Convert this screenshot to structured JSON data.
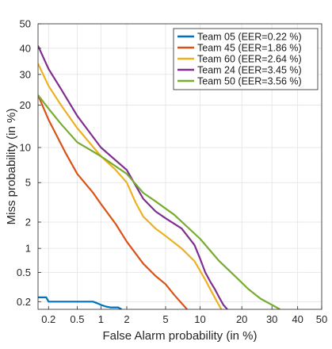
{
  "chart_data": {
    "type": "line",
    "title": "",
    "xlabel": "False Alarm probability (in %)",
    "ylabel": "Miss probability (in %)",
    "xscale": "probit",
    "yscale": "probit",
    "xlim": [
      0.14,
      50
    ],
    "ylim": [
      0.155,
      50
    ],
    "grid": true,
    "legend_position": "top-right",
    "x_ticks": [
      0.2,
      0.5,
      1,
      2,
      5,
      10,
      20,
      30,
      40,
      50
    ],
    "x_tick_labels": [
      "0.2",
      "0.5",
      "1",
      "2",
      "5",
      "10",
      "20",
      "30",
      "40",
      "50"
    ],
    "y_ticks": [
      0.2,
      0.5,
      1,
      2,
      5,
      10,
      20,
      30,
      40,
      50
    ],
    "y_tick_labels": [
      "0.2",
      "0.5",
      "1",
      "2",
      "5",
      "10",
      "20",
      "30",
      "40",
      "50"
    ],
    "series": [
      {
        "name": "Team 05 (EER=0.22 %)",
        "color": "#0072BD",
        "points": [
          [
            0.14,
            0.23
          ],
          [
            0.185,
            0.23
          ],
          [
            0.2,
            0.2
          ],
          [
            0.5,
            0.2
          ],
          [
            0.8,
            0.2
          ],
          [
            0.9,
            0.19
          ],
          [
            1.0,
            0.18
          ],
          [
            1.15,
            0.17
          ],
          [
            1.3,
            0.165
          ],
          [
            1.6,
            0.165
          ],
          [
            1.75,
            0.155
          ]
        ]
      },
      {
        "name": "Team 45 (EER=1.86 %)",
        "color": "#D95319",
        "points": [
          [
            0.14,
            23
          ],
          [
            0.2,
            16
          ],
          [
            0.35,
            9
          ],
          [
            0.5,
            6
          ],
          [
            0.8,
            4
          ],
          [
            1.0,
            3.1
          ],
          [
            1.5,
            1.9
          ],
          [
            2.0,
            1.2
          ],
          [
            3.0,
            0.65
          ],
          [
            4.0,
            0.45
          ],
          [
            5.0,
            0.35
          ],
          [
            6.0,
            0.25
          ],
          [
            7.0,
            0.19
          ],
          [
            7.8,
            0.155
          ]
        ]
      },
      {
        "name": "Team 60 (EER=2.64 %)",
        "color": "#EDB120",
        "points": [
          [
            0.14,
            34
          ],
          [
            0.2,
            26
          ],
          [
            0.3,
            20
          ],
          [
            0.5,
            14
          ],
          [
            1.0,
            8.5
          ],
          [
            1.5,
            6.5
          ],
          [
            2.0,
            5.0
          ],
          [
            2.5,
            3.2
          ],
          [
            3.0,
            2.3
          ],
          [
            4.0,
            1.7
          ],
          [
            5.0,
            1.4
          ],
          [
            7.0,
            1.0
          ],
          [
            9.0,
            0.7
          ],
          [
            11.0,
            0.4
          ],
          [
            12.0,
            0.3
          ],
          [
            13.5,
            0.2
          ],
          [
            14.5,
            0.155
          ]
        ]
      },
      {
        "name": "Team 24 (EER=3.45 %)",
        "color": "#7E2F8E",
        "points": [
          [
            0.14,
            41
          ],
          [
            0.2,
            32
          ],
          [
            0.3,
            25
          ],
          [
            0.5,
            17
          ],
          [
            1.0,
            10
          ],
          [
            2.0,
            6.5
          ],
          [
            3.0,
            3.5
          ],
          [
            4.0,
            2.6
          ],
          [
            5.0,
            2.2
          ],
          [
            7.0,
            1.7
          ],
          [
            9.0,
            1.1
          ],
          [
            10.0,
            0.75
          ],
          [
            11.0,
            0.5
          ],
          [
            12.0,
            0.38
          ],
          [
            13.0,
            0.3
          ],
          [
            14.0,
            0.23
          ],
          [
            15.0,
            0.18
          ],
          [
            16.0,
            0.155
          ]
        ]
      },
      {
        "name": "Team 50 (EER=3.56 %)",
        "color": "#77AC30",
        "points": [
          [
            0.14,
            23
          ],
          [
            0.2,
            19
          ],
          [
            0.3,
            15
          ],
          [
            0.5,
            11
          ],
          [
            1.0,
            8.5
          ],
          [
            2.0,
            6.0
          ],
          [
            3.0,
            4.0
          ],
          [
            4.0,
            3.3
          ],
          [
            6.0,
            2.4
          ],
          [
            10.0,
            1.3
          ],
          [
            14.0,
            0.7
          ],
          [
            18.0,
            0.45
          ],
          [
            22.0,
            0.3
          ],
          [
            26.0,
            0.22
          ],
          [
            30.0,
            0.18
          ],
          [
            33.0,
            0.155
          ]
        ]
      }
    ]
  }
}
